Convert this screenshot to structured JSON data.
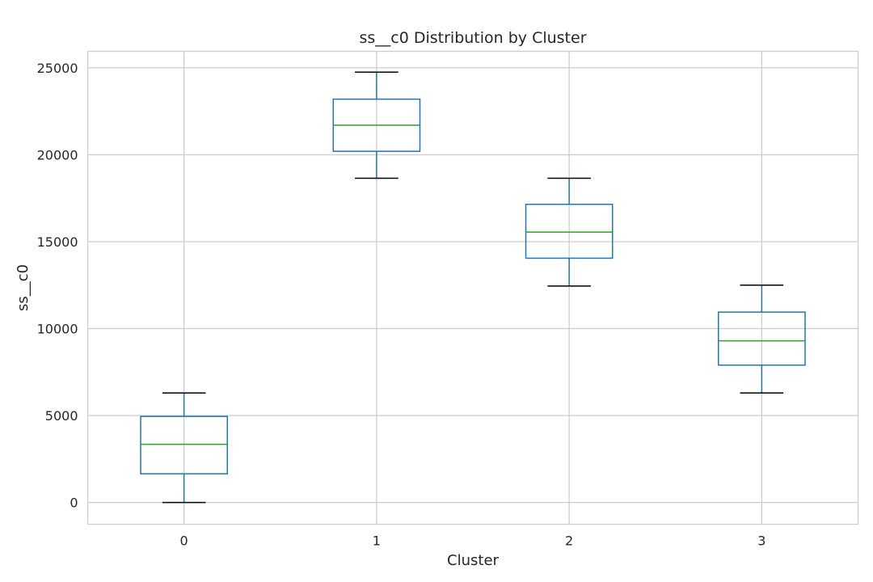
{
  "chart_data": {
    "type": "box",
    "title": "ss__c0 Distribution by Cluster",
    "xlabel": "Cluster",
    "ylabel": "ss__c0",
    "categories": [
      "0",
      "1",
      "2",
      "3"
    ],
    "ylim": [
      -1250,
      25950
    ],
    "yticks": [
      0,
      5000,
      10000,
      15000,
      20000,
      25000
    ],
    "grid": true,
    "boxes": [
      {
        "category": "0",
        "whisker_low": 0,
        "q1": 1650,
        "median": 3350,
        "q3": 4950,
        "whisker_high": 6300
      },
      {
        "category": "1",
        "whisker_low": 18650,
        "q1": 20200,
        "median": 21700,
        "q3": 23200,
        "whisker_high": 24750
      },
      {
        "category": "2",
        "whisker_low": 12450,
        "q1": 14050,
        "median": 15550,
        "q3": 17150,
        "whisker_high": 18650
      },
      {
        "category": "3",
        "whisker_low": 6300,
        "q1": 7900,
        "median": 9300,
        "q3": 10950,
        "whisker_high": 12500
      }
    ],
    "colors": {
      "box": "#1f77b4",
      "median": "#2ca02c",
      "caps": "#000000",
      "grid": "#cccccc",
      "frame": "#cccccc"
    }
  }
}
